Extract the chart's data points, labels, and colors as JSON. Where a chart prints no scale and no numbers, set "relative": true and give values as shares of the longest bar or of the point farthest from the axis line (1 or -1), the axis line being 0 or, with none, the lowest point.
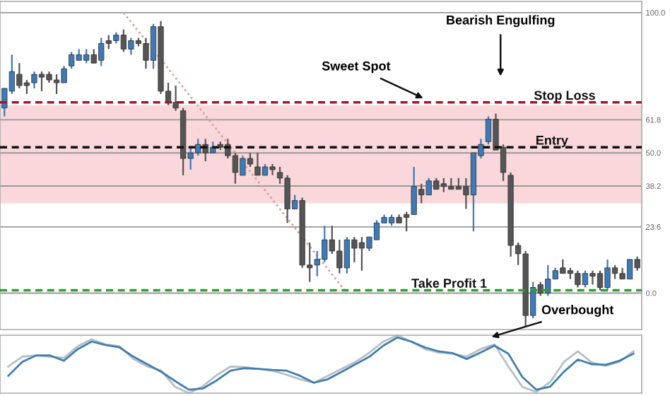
{
  "chart_data": [
    {
      "type": "candlestick",
      "categories": [
        null,
        null,
        null,
        null,
        null,
        null,
        null,
        null,
        null,
        null,
        null,
        null,
        null,
        null,
        null,
        null,
        null,
        null,
        null,
        null,
        null,
        null,
        null,
        null,
        null,
        null,
        null,
        null,
        null,
        null,
        null,
        null,
        null,
        null,
        null,
        null,
        null,
        null,
        null,
        null,
        null,
        null,
        null,
        null,
        null,
        null,
        null,
        null,
        null,
        null,
        null,
        null,
        null,
        null,
        null,
        null,
        null,
        null,
        null,
        null,
        null,
        null,
        null,
        null,
        null,
        null,
        null,
        null,
        null,
        null,
        null,
        null,
        null,
        null,
        null,
        null,
        null,
        null,
        null,
        null,
        null,
        null,
        null,
        null,
        null,
        null
      ],
      "ohlc": [
        [
          66,
          73,
          63,
          73
        ],
        [
          72,
          85,
          71,
          79
        ],
        [
          78,
          82,
          73,
          74
        ],
        [
          75,
          76,
          71,
          74
        ],
        [
          75,
          79,
          73,
          78
        ],
        [
          78,
          79,
          72,
          77
        ],
        [
          78,
          79,
          75,
          76
        ],
        [
          76,
          78,
          71,
          75
        ],
        [
          75,
          81,
          75,
          80
        ],
        [
          81,
          86,
          80,
          85
        ],
        [
          83,
          87,
          83,
          85
        ],
        [
          83,
          87,
          82,
          85
        ],
        [
          85,
          87,
          82,
          82
        ],
        [
          83,
          91,
          81,
          89
        ],
        [
          90,
          92,
          87,
          89
        ],
        [
          90,
          93,
          89,
          92
        ],
        [
          92,
          94,
          86,
          87
        ],
        [
          87,
          91,
          85,
          90
        ],
        [
          90,
          91,
          88,
          89
        ],
        [
          89,
          91,
          80,
          83
        ],
        [
          83,
          96,
          80,
          95
        ],
        [
          95,
          97,
          71,
          72
        ],
        [
          72,
          75,
          67,
          68
        ],
        [
          68,
          74,
          65,
          66
        ],
        [
          65,
          66,
          42,
          48
        ],
        [
          48,
          52,
          44,
          50
        ],
        [
          50,
          55,
          49,
          53
        ],
        [
          53,
          55,
          47,
          50
        ],
        [
          50,
          54,
          50,
          52
        ],
        [
          53,
          54,
          51,
          52
        ],
        [
          53,
          55,
          48,
          49
        ],
        [
          49,
          50,
          39,
          43
        ],
        [
          42,
          49,
          42,
          48
        ],
        [
          48,
          50,
          45,
          46
        ],
        [
          45,
          50,
          42,
          42
        ],
        [
          42,
          46,
          42,
          45
        ],
        [
          45,
          46,
          42,
          44
        ],
        [
          43,
          45,
          39,
          41
        ],
        [
          41,
          42,
          25,
          30
        ],
        [
          30,
          35,
          30,
          33
        ],
        [
          33,
          34,
          9,
          10
        ],
        [
          10,
          18,
          4,
          9
        ],
        [
          10,
          15,
          6,
          12
        ],
        [
          12,
          24,
          11,
          19
        ],
        [
          19,
          24,
          14,
          15
        ],
        [
          15,
          19,
          7,
          9
        ],
        [
          9,
          20,
          7,
          19
        ],
        [
          19,
          20,
          11,
          16
        ],
        [
          18,
          20,
          8,
          16
        ],
        [
          16,
          20,
          15,
          20
        ],
        [
          19,
          26,
          19,
          25
        ],
        [
          25,
          28,
          25,
          27
        ],
        [
          25,
          28,
          24,
          27
        ],
        [
          27,
          28,
          25,
          25
        ],
        [
          28,
          29,
          22,
          27
        ],
        [
          28,
          45,
          28,
          38
        ],
        [
          37,
          39,
          32,
          35
        ],
        [
          35,
          41,
          35,
          40
        ],
        [
          40,
          41,
          37,
          37
        ],
        [
          39,
          41,
          36,
          38
        ],
        [
          38,
          41,
          37,
          37
        ],
        [
          38,
          41,
          37,
          37
        ],
        [
          38,
          41,
          30,
          35
        ],
        [
          35,
          50,
          22,
          50
        ],
        [
          49,
          55,
          48,
          53
        ],
        [
          54,
          63,
          53,
          62
        ],
        [
          62,
          64,
          51,
          51
        ],
        [
          52,
          53,
          40,
          43
        ],
        [
          42,
          43,
          13,
          17
        ],
        [
          17,
          18,
          10,
          14
        ],
        [
          14,
          15,
          -12,
          -8
        ],
        [
          -8,
          4,
          -9,
          2
        ],
        [
          3,
          4,
          -1,
          0
        ],
        [
          0,
          10,
          -1,
          5
        ],
        [
          5,
          9,
          5,
          8
        ],
        [
          9,
          12,
          7,
          7
        ],
        [
          8,
          9,
          5,
          7
        ],
        [
          7,
          8,
          2,
          3
        ],
        [
          3,
          8,
          2,
          7
        ],
        [
          7,
          8,
          3,
          6
        ],
        [
          7,
          8,
          1,
          2
        ],
        [
          2,
          12,
          1,
          9
        ],
        [
          9,
          10,
          5,
          7
        ],
        [
          7,
          9,
          5,
          5
        ],
        [
          5,
          12,
          5,
          12
        ],
        [
          12,
          13,
          8,
          9
        ]
      ],
      "colors": [
        "#3d7ab8",
        "#3d7ab8",
        "#555555",
        "#555555",
        "#3d7ab8",
        "#555555",
        "#555555",
        "#555555",
        "#3d7ab8",
        "#3d7ab8",
        "#3d7ab8",
        "#3d7ab8",
        "#555555",
        "#3d7ab8",
        "#555555",
        "#3d7ab8",
        "#555555",
        "#3d7ab8",
        "#555555",
        "#555555",
        "#3d7ab8",
        "#555555",
        "#555555",
        "#555555",
        "#555555",
        "#3d7ab8",
        "#3d7ab8",
        "#555555",
        "#3d7ab8",
        "#555555",
        "#555555",
        "#555555",
        "#3d7ab8",
        "#555555",
        "#555555",
        "#3d7ab8",
        "#555555",
        "#555555",
        "#555555",
        "#3d7ab8",
        "#555555",
        "#555555",
        "#3d7ab8",
        "#3d7ab8",
        "#555555",
        "#555555",
        "#3d7ab8",
        "#555555",
        "#555555",
        "#3d7ab8",
        "#3d7ab8",
        "#3d7ab8",
        "#3d7ab8",
        "#555555",
        "#555555",
        "#3d7ab8",
        "#555555",
        "#3d7ab8",
        "#555555",
        "#555555",
        "#555555",
        "#555555",
        "#555555",
        "#3d7ab8",
        "#3d7ab8",
        "#3d7ab8",
        "#555555",
        "#555555",
        "#555555",
        "#555555",
        "#555555",
        "#3d7ab8",
        "#555555",
        "#3d7ab8",
        "#3d7ab8",
        "#555555",
        "#555555",
        "#555555",
        "#3d7ab8",
        "#555555",
        "#555555",
        "#3d7ab8",
        "#555555",
        "#555555",
        "#3d7ab8",
        "#555555"
      ],
      "series": [
        {
          "type": "line",
          "color": "#d9a0a0",
          "line_style": "dotted",
          "values": [
            null,
            null,
            null,
            null,
            null,
            null,
            null,
            null,
            null,
            null,
            null,
            null,
            null,
            null,
            null,
            null,
            100,
            null,
            null,
            null,
            null,
            null,
            null,
            null,
            null,
            null,
            null,
            null,
            null,
            null,
            null,
            null,
            null,
            null,
            null,
            null,
            null,
            null,
            null,
            null,
            null,
            null,
            null,
            null,
            null,
            null,
            0,
            null,
            null,
            null,
            null,
            null,
            null,
            null,
            null,
            null,
            null,
            null,
            null,
            null,
            null,
            null,
            null,
            null,
            null,
            null,
            null,
            null,
            null,
            null,
            null,
            null,
            null,
            null,
            null,
            null,
            null,
            null,
            null,
            null,
            null,
            null,
            null,
            null,
            null,
            null
          ]
        }
      ],
      "ylim": [
        -13,
        104
      ],
      "yticks": [
        {
          "value": 100,
          "label": "100.0"
        },
        {
          "value": 61.8,
          "label": "61.8"
        },
        {
          "value": 50,
          "label": "50.0"
        },
        {
          "value": 38.2,
          "label": "38.2"
        },
        {
          "value": 23.6,
          "label": "23.6"
        },
        {
          "value": 0,
          "label": "0.0"
        }
      ],
      "tick_labels": "y",
      "grid": "y",
      "bands": [
        {
          "axis": "y",
          "from": 32,
          "to": 67,
          "color": "#f7cdd1"
        }
      ],
      "ref_lines": [
        {
          "axis": "y",
          "value": 68,
          "label": "Stop Loss",
          "color": "#a0182a",
          "line_style": "dashed"
        },
        {
          "axis": "y",
          "value": 52,
          "label": "Entry",
          "color": "#111111",
          "line_style": "dashed"
        },
        {
          "axis": "y",
          "value": 1,
          "label": "Take Profit 1",
          "color": "#2ca02c",
          "line_style": "dashed"
        }
      ],
      "annotations": [
        "Sweet Spot",
        "Bearish Engulfing"
      ]
    },
    {
      "type": "line",
      "relative": true,
      "tick_labels": false,
      "categories": [
        null,
        null,
        null,
        null,
        null,
        null,
        null,
        null,
        null,
        null,
        null,
        null,
        null,
        null,
        null,
        null,
        null,
        null,
        null,
        null,
        null,
        null,
        null,
        null,
        null,
        null,
        null,
        null,
        null,
        null,
        null,
        null,
        null,
        null,
        null,
        null,
        null,
        null,
        null,
        null,
        null,
        null,
        null,
        null,
        null,
        null
      ],
      "series": [
        {
          "color": "#b7bec6",
          "values": [
            0.46,
            0.63,
            0.65,
            0.63,
            0.61,
            0.81,
            0.93,
            0.84,
            0.81,
            0.59,
            0.46,
            0.39,
            0.11,
            0,
            0.12,
            0.31,
            0.46,
            0.45,
            0.42,
            0.39,
            0.32,
            0.24,
            0.18,
            0.3,
            0.42,
            0.54,
            0.7,
            0.89,
            1,
            0.89,
            0.76,
            0.7,
            0.68,
            0.63,
            0.76,
            0.84,
            0.46,
            0.11,
            0.02,
            0.19,
            0.54,
            0.72,
            0.53,
            0.47,
            0.54,
            0.72
          ]
        },
        {
          "color": "#3f7fae",
          "values": [
            0.3,
            0.54,
            0.65,
            0.65,
            0.56,
            0.76,
            0.89,
            0.83,
            0.79,
            0.63,
            0.5,
            0.37,
            0.21,
            0.06,
            0.08,
            0.22,
            0.39,
            0.43,
            0.42,
            0.4,
            0.39,
            0.3,
            0.18,
            0.24,
            0.37,
            0.5,
            0.63,
            0.82,
            0.96,
            0.89,
            0.79,
            0.72,
            0.69,
            0.59,
            0.7,
            0.82,
            0.68,
            0.28,
            0.06,
            0.11,
            0.37,
            0.58,
            0.5,
            0.49,
            0.56,
            0.68
          ]
        }
      ],
      "annotations": [
        "Overbought"
      ]
    }
  ]
}
